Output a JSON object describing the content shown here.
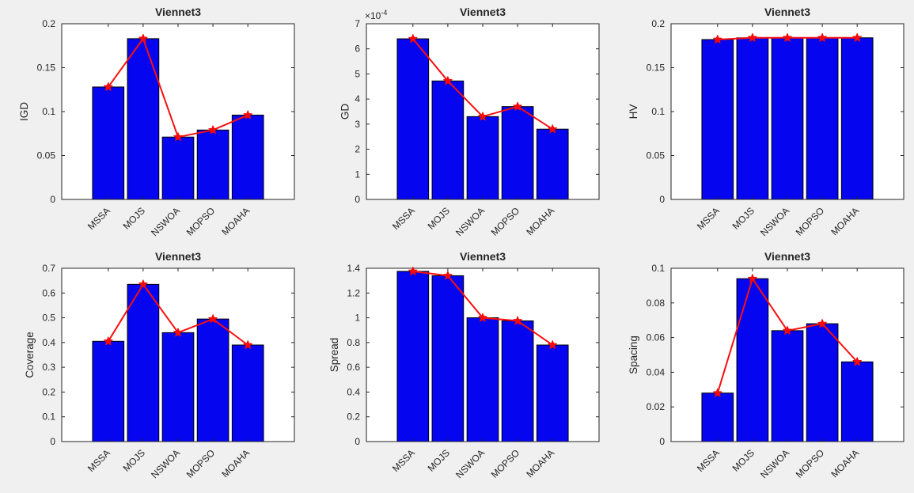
{
  "theme": {
    "figure_bg": "#f0f0f0",
    "plot_bg": "#ffffff",
    "bar_fill": "#0505f0",
    "bar_edge": "#000000",
    "line_color": "#fa0f0f",
    "marker_color": "#f50a0a",
    "axis_color": "#262626",
    "text_color": "#262626"
  },
  "chart_data": [
    {
      "type": "bar",
      "overlay_line": true,
      "marker": "filled-star",
      "title": "Viennet3",
      "ylabel": "IGD",
      "categories": [
        "MSSA",
        "MOJS",
        "NSWOA",
        "MOPSO",
        "MOAHA"
      ],
      "values": [
        0.128,
        0.183,
        0.071,
        0.079,
        0.096
      ],
      "ylim": [
        0,
        0.2
      ],
      "yticks": [
        0,
        0.05,
        0.1,
        0.15,
        0.2
      ],
      "ytick_labels": [
        "0",
        "0.05",
        "0.1",
        "0.15",
        "0.2"
      ],
      "x_tick_rotation": 45,
      "grid": false,
      "exponent_label": null
    },
    {
      "type": "bar",
      "overlay_line": true,
      "marker": "filled-star",
      "title": "Viennet3",
      "ylabel": "GD",
      "categories": [
        "MSSA",
        "MOJS",
        "NSWOA",
        "MOPSO",
        "MOAHA"
      ],
      "values": [
        6.4,
        4.72,
        3.3,
        3.7,
        2.8
      ],
      "ylim": [
        0,
        7
      ],
      "yticks": [
        0,
        1,
        2,
        3,
        4,
        5,
        6,
        7
      ],
      "ytick_labels": [
        "0",
        "1",
        "2",
        "3",
        "4",
        "5",
        "6",
        "7"
      ],
      "x_tick_rotation": 45,
      "grid": false,
      "exponent_label": {
        "base": "×10",
        "exp": "-4"
      }
    },
    {
      "type": "bar",
      "overlay_line": true,
      "marker": "filled-star",
      "title": "Viennet3",
      "ylabel": "HV",
      "categories": [
        "MSSA",
        "MOJS",
        "NSWOA",
        "MOPSO",
        "MOAHA"
      ],
      "values": [
        0.182,
        0.184,
        0.184,
        0.184,
        0.184
      ],
      "ylim": [
        0,
        0.2
      ],
      "yticks": [
        0,
        0.05,
        0.1,
        0.15,
        0.2
      ],
      "ytick_labels": [
        "0",
        "0.05",
        "0.1",
        "0.15",
        "0.2"
      ],
      "x_tick_rotation": 45,
      "grid": false,
      "exponent_label": null
    },
    {
      "type": "bar",
      "overlay_line": true,
      "marker": "filled-star",
      "title": "Viennet3",
      "ylabel": "Coverage",
      "categories": [
        "MSSA",
        "MOJS",
        "NSWOA",
        "MOPSO",
        "MOAHA"
      ],
      "values": [
        0.405,
        0.635,
        0.44,
        0.495,
        0.39
      ],
      "ylim": [
        0,
        0.7
      ],
      "yticks": [
        0,
        0.1,
        0.2,
        0.3,
        0.4,
        0.5,
        0.6,
        0.7
      ],
      "ytick_labels": [
        "0",
        "0.1",
        "0.2",
        "0.3",
        "0.4",
        "0.5",
        "0.6",
        "0.7"
      ],
      "x_tick_rotation": 45,
      "grid": false,
      "exponent_label": null
    },
    {
      "type": "bar",
      "overlay_line": true,
      "marker": "filled-star",
      "title": "Viennet3",
      "ylabel": "Spread",
      "categories": [
        "MSSA",
        "MOJS",
        "NSWOA",
        "MOPSO",
        "MOAHA"
      ],
      "values": [
        1.375,
        1.34,
        1.0,
        0.975,
        0.78
      ],
      "ylim": [
        0,
        1.4
      ],
      "yticks": [
        0,
        0.2,
        0.4,
        0.6,
        0.8,
        1,
        1.2,
        1.4
      ],
      "ytick_labels": [
        "0",
        "0.2",
        "0.4",
        "0.6",
        "0.8",
        "1",
        "1.2",
        "1.4"
      ],
      "x_tick_rotation": 45,
      "grid": false,
      "exponent_label": null
    },
    {
      "type": "bar",
      "overlay_line": true,
      "marker": "filled-star",
      "title": "Viennet3",
      "ylabel": "Spacing",
      "categories": [
        "MSSA",
        "MOJS",
        "NSWOA",
        "MOPSO",
        "MOAHA"
      ],
      "values": [
        0.028,
        0.094,
        0.064,
        0.068,
        0.046
      ],
      "ylim": [
        0,
        0.1
      ],
      "yticks": [
        0,
        0.02,
        0.04,
        0.06,
        0.08,
        0.1
      ],
      "ytick_labels": [
        "0",
        "0.02",
        "0.04",
        "0.06",
        "0.08",
        "0.1"
      ],
      "x_tick_rotation": 45,
      "grid": false,
      "exponent_label": null
    }
  ]
}
